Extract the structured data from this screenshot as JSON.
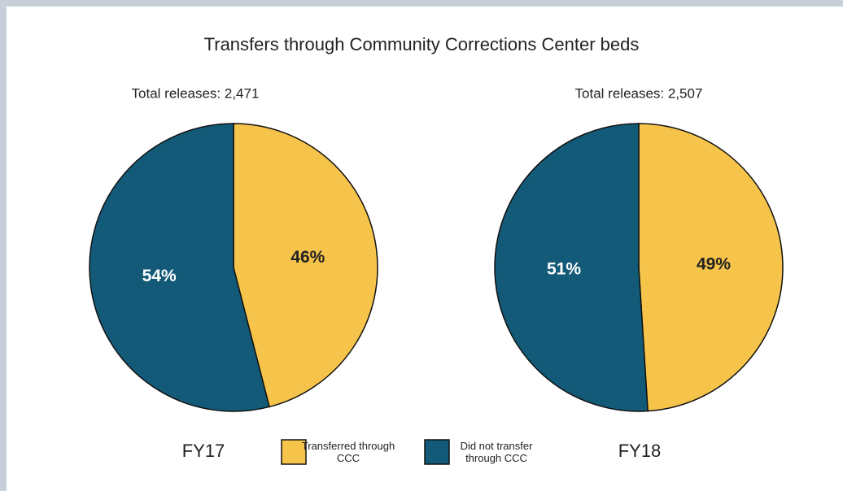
{
  "chart_data": {
    "type": "pie",
    "title": "Transfers through Community Corrections Center beds",
    "categories": [
      "Transferred through CCC",
      "Did not transfer through CCC"
    ],
    "colors": [
      "#f6c44b",
      "#135a78"
    ],
    "pies": [
      {
        "name": "FY17",
        "subtitle": "Total releases: 2,471",
        "values": [
          46,
          54
        ],
        "value_labels": [
          "46%",
          "54%"
        ]
      },
      {
        "name": "FY18",
        "subtitle": "Total releases: 2,507",
        "values": [
          49,
          51
        ],
        "value_labels": [
          "49%",
          "51%"
        ]
      }
    ]
  }
}
